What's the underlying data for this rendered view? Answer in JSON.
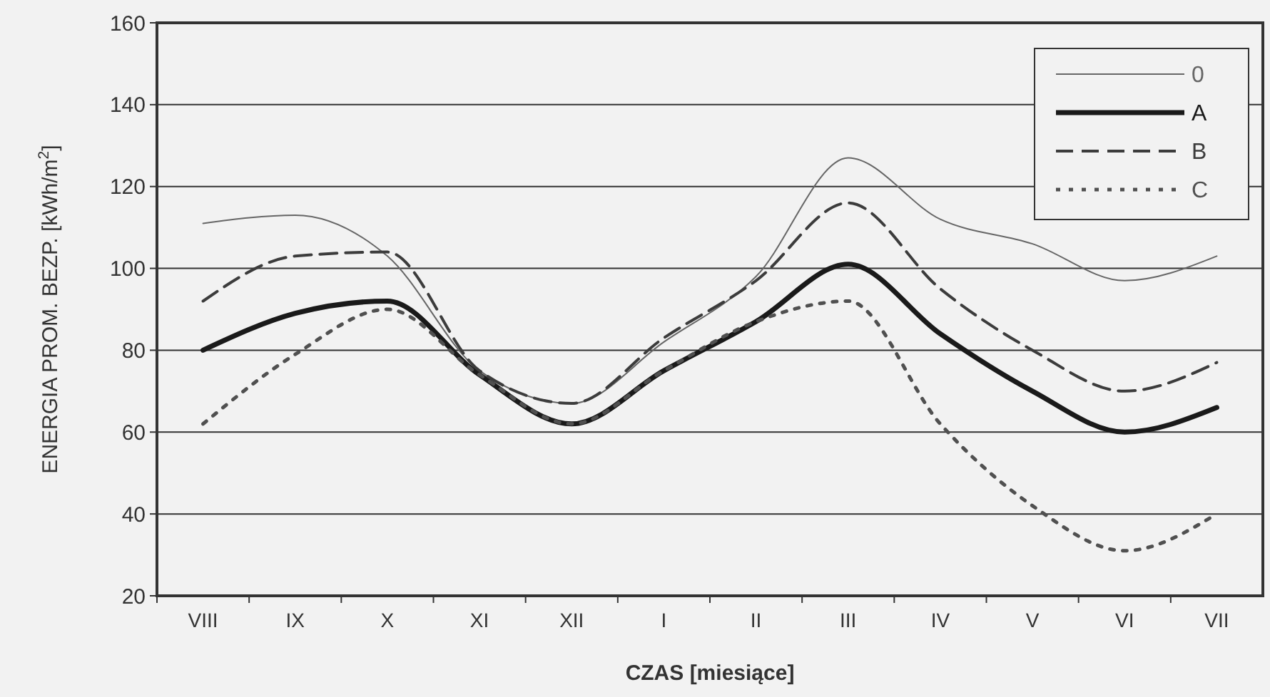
{
  "chart_data": {
    "type": "line",
    "xlabel": "CZAS [miesiące]",
    "ylabel": "ENERGIA PROM. BEZP. [kWh/m$^{2}$]",
    "categories": [
      "VIII",
      "IX",
      "X",
      "XI",
      "XII",
      "I",
      "II",
      "III",
      "IV",
      "V",
      "VI",
      "VII"
    ],
    "ylim": [
      20,
      160
    ],
    "yticks": [
      20,
      40,
      60,
      80,
      100,
      120,
      140,
      160
    ],
    "grid": "y",
    "legend": "top right",
    "series": [
      {
        "name": "0",
        "color": "#666666",
        "line_style": "solid",
        "values": [
          111,
          113,
          103,
          75,
          67,
          82,
          98,
          127,
          112,
          106,
          97,
          103
        ]
      },
      {
        "name": "A",
        "color": "#1a1a1a",
        "line_style": "solid",
        "values": [
          80,
          89,
          92,
          74,
          62,
          75,
          87,
          101,
          84,
          70,
          60,
          66
        ]
      },
      {
        "name": "B",
        "color": "#3c3c3c",
        "line_style": "dashed",
        "values": [
          92,
          103,
          104,
          75,
          67,
          83,
          97,
          116,
          95,
          80,
          70,
          77
        ]
      },
      {
        "name": "C",
        "color": "#505050",
        "line_style": "dotted",
        "values": [
          62,
          79,
          90,
          74,
          62,
          75,
          87,
          92,
          62,
          42,
          31,
          40
        ]
      }
    ]
  }
}
